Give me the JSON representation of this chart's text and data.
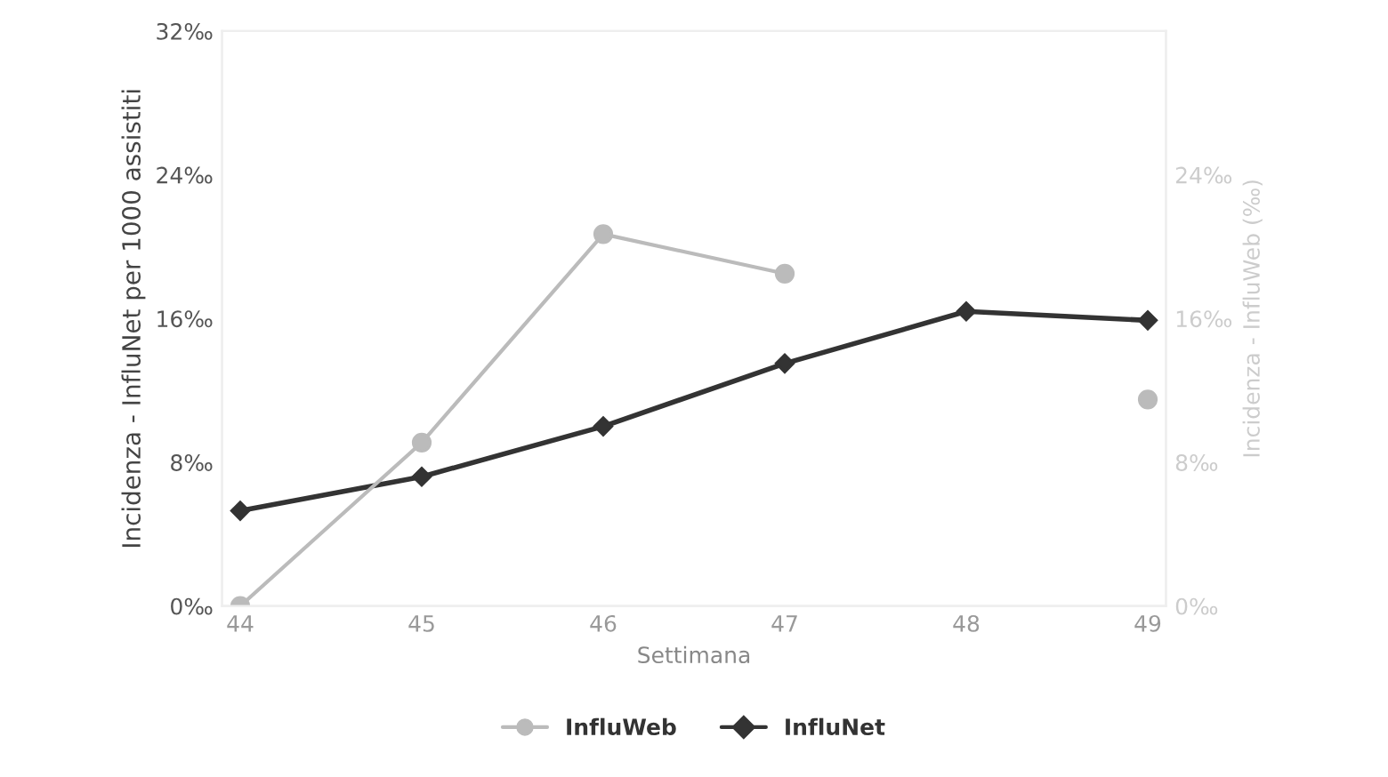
{
  "chart_data": {
    "type": "line",
    "xlabel": "Settimana",
    "ylabel": "Incidenza - InfluNet per 1000 assistiti",
    "y2label": "Incidenza - InfluWeb (‰)",
    "categories": [
      "44",
      "45",
      "46",
      "47",
      "48",
      "49"
    ],
    "series": [
      {
        "name": "InfluWeb",
        "color": "#bbbbbb",
        "axis": "y2",
        "marker": "circle",
        "values": [
          0,
          9.1,
          20.7,
          18.5,
          null,
          11.5
        ]
      },
      {
        "name": "InfluNet",
        "color": "#333333",
        "axis": "y",
        "marker": "diamond",
        "values": [
          5.3,
          7.2,
          10.0,
          13.5,
          16.4,
          15.9
        ]
      }
    ],
    "ylim": [
      0,
      32
    ],
    "yticks": [
      {
        "value": 0,
        "label": "0‰"
      },
      {
        "value": 8,
        "label": "8‰"
      },
      {
        "value": 16,
        "label": "16‰"
      },
      {
        "value": 24,
        "label": "24‰"
      },
      {
        "value": 32,
        "label": "32‰"
      }
    ],
    "y2lim": [
      0,
      32
    ],
    "y2ticks": [
      {
        "value": 0,
        "label": "0‰"
      },
      {
        "value": 8,
        "label": "8‰"
      },
      {
        "value": 16,
        "label": "16‰"
      },
      {
        "value": 24,
        "label": "24‰"
      }
    ],
    "grid": false,
    "legend": "bottom",
    "line_style": "solid"
  }
}
